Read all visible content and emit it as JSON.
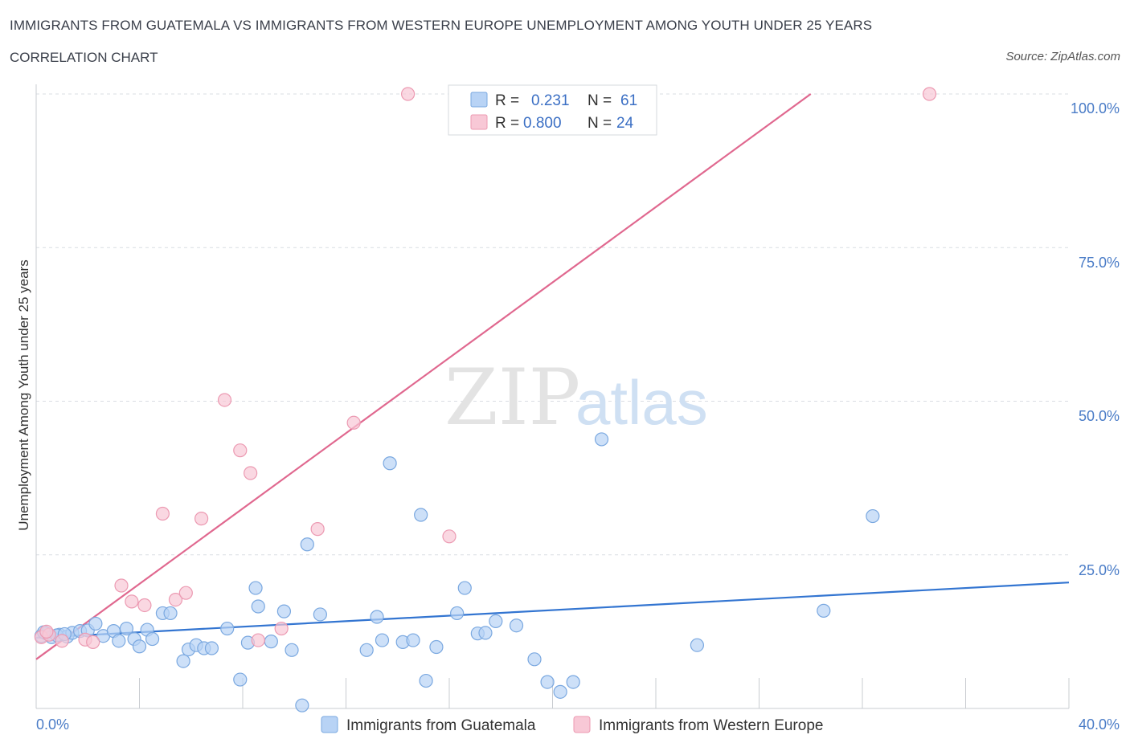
{
  "header": {
    "title": "IMMIGRANTS FROM GUATEMALA VS IMMIGRANTS FROM WESTERN EUROPE UNEMPLOYMENT AMONG YOUTH UNDER 25 YEARS",
    "subtitle": "CORRELATION CHART",
    "source": "Source: ZipAtlas.com"
  },
  "watermark": {
    "zip": "ZIP",
    "atlas": "atlas"
  },
  "legend": {
    "r_label": "R =",
    "n_label": "N =",
    "rows": [
      {
        "r": "0.231",
        "n": "61",
        "color": "#a9c8f0"
      },
      {
        "r": "0.800",
        "n": "24",
        "color": "#f6b7c9"
      }
    ]
  },
  "colors": {
    "series_blue_fill": "#b8d3f5",
    "series_blue_stroke": "#7aa8e0",
    "series_pink_fill": "#f8c8d6",
    "series_pink_stroke": "#ec9ab2",
    "trend_blue": "#3375d1",
    "trend_pink": "#e0688f",
    "grid": "#d9dde3",
    "tick_text": "#4a7cc7"
  },
  "chart_data": {
    "type": "scatter",
    "title": "IMMIGRANTS FROM GUATEMALA VS IMMIGRANTS FROM WESTERN EUROPE UNEMPLOYMENT AMONG YOUTH UNDER 25 YEARS",
    "xlabel": "",
    "ylabel": "Unemployment Among Youth under 25 years",
    "xlim": [
      0,
      40
    ],
    "ylim": [
      0,
      100
    ],
    "x_tick_labels": [
      "0.0%",
      "40.0%"
    ],
    "y_ticks": [
      25,
      50,
      75,
      100
    ],
    "y_tick_labels": [
      "25.0%",
      "50.0%",
      "75.0%",
      "100.0%"
    ],
    "grid": true,
    "legend_position": "top-center",
    "series": [
      {
        "name": "Immigrants from Guatemala",
        "color": "#a9c8f0",
        "trend": {
          "x": [
            0,
            40
          ],
          "y": [
            11.5,
            20.5
          ]
        },
        "points": [
          [
            0.2,
            11.8
          ],
          [
            0.4,
            12.2
          ],
          [
            0.6,
            11.6
          ],
          [
            0.9,
            12.0
          ],
          [
            1.2,
            11.7
          ],
          [
            1.4,
            12.3
          ],
          [
            1.7,
            12.6
          ],
          [
            2.0,
            12.7
          ],
          [
            2.3,
            13.8
          ],
          [
            2.6,
            11.8
          ],
          [
            3.0,
            12.6
          ],
          [
            3.2,
            11.0
          ],
          [
            3.5,
            13.0
          ],
          [
            3.8,
            11.3
          ],
          [
            4.0,
            10.1
          ],
          [
            4.3,
            12.8
          ],
          [
            4.5,
            11.3
          ],
          [
            4.9,
            15.5
          ],
          [
            5.2,
            15.5
          ],
          [
            5.7,
            7.7
          ],
          [
            5.9,
            9.6
          ],
          [
            6.2,
            10.3
          ],
          [
            6.5,
            9.8
          ],
          [
            6.8,
            9.8
          ],
          [
            7.4,
            13.0
          ],
          [
            7.9,
            4.7
          ],
          [
            8.2,
            10.7
          ],
          [
            8.5,
            19.6
          ],
          [
            8.6,
            16.6
          ],
          [
            9.1,
            10.9
          ],
          [
            9.6,
            15.8
          ],
          [
            9.9,
            9.5
          ],
          [
            10.3,
            0.5
          ],
          [
            10.5,
            26.7
          ],
          [
            11.0,
            15.3
          ],
          [
            12.8,
            9.5
          ],
          [
            13.2,
            14.9
          ],
          [
            13.4,
            11.1
          ],
          [
            13.7,
            39.9
          ],
          [
            14.2,
            10.8
          ],
          [
            14.6,
            11.1
          ],
          [
            14.9,
            31.5
          ],
          [
            15.1,
            4.5
          ],
          [
            15.5,
            10.0
          ],
          [
            16.3,
            15.5
          ],
          [
            16.6,
            19.6
          ],
          [
            17.1,
            12.2
          ],
          [
            17.4,
            12.3
          ],
          [
            17.8,
            14.2
          ],
          [
            18.6,
            13.5
          ],
          [
            19.3,
            8.0
          ],
          [
            19.8,
            4.3
          ],
          [
            20.3,
            2.7
          ],
          [
            20.8,
            4.3
          ],
          [
            21.9,
            43.8
          ],
          [
            25.6,
            10.3
          ],
          [
            30.5,
            15.9
          ],
          [
            32.4,
            31.3
          ],
          [
            0.3,
            12.4
          ],
          [
            0.8,
            11.9
          ],
          [
            1.1,
            12.1
          ]
        ]
      },
      {
        "name": "Immigrants from Western Europe",
        "color": "#f6b7c9",
        "trend": {
          "x": [
            0,
            30
          ],
          "y": [
            8.0,
            100
          ]
        },
        "points": [
          [
            0.2,
            11.6
          ],
          [
            0.5,
            12.0
          ],
          [
            1.0,
            11.0
          ],
          [
            1.9,
            11.2
          ],
          [
            2.2,
            10.8
          ],
          [
            3.3,
            20.0
          ],
          [
            3.7,
            17.4
          ],
          [
            4.2,
            16.8
          ],
          [
            4.9,
            31.7
          ],
          [
            5.4,
            17.7
          ],
          [
            5.8,
            18.8
          ],
          [
            6.4,
            30.9
          ],
          [
            7.3,
            50.2
          ],
          [
            7.9,
            42.0
          ],
          [
            8.3,
            38.3
          ],
          [
            8.6,
            11.1
          ],
          [
            9.5,
            13.0
          ],
          [
            10.9,
            29.2
          ],
          [
            12.3,
            46.5
          ],
          [
            14.4,
            100
          ],
          [
            16.0,
            28.0
          ],
          [
            18.2,
            100
          ],
          [
            34.6,
            100
          ],
          [
            0.4,
            12.5
          ]
        ]
      }
    ]
  },
  "bottom_legend": [
    {
      "label": "Immigrants from Guatemala",
      "color": "#b8d3f5"
    },
    {
      "label": "Immigrants from Western Europe",
      "color": "#f8c8d6"
    }
  ]
}
